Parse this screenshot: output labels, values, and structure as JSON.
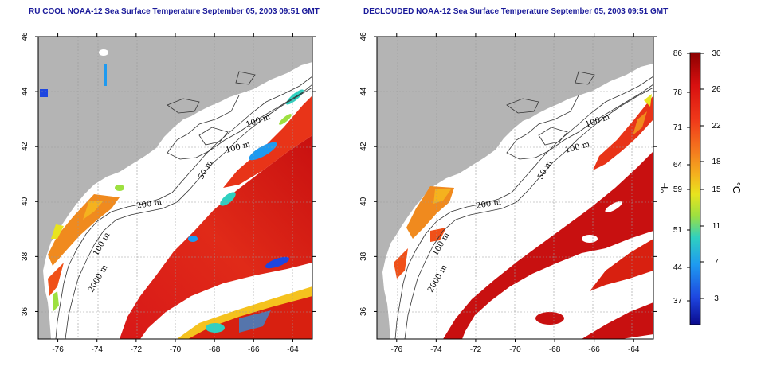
{
  "left_panel": {
    "title": "RU COOL NOAA-12 Sea Surface Temperature September 05, 2003 09:51 GMT",
    "contour_labels": [
      "100 m",
      "100 m",
      "50 m",
      "200 m",
      "100 m",
      "2000 m"
    ]
  },
  "right_panel": {
    "title": "DECLOUDED NOAA-12 Sea Surface Temperature September 05, 2003 09:51 GMT",
    "contour_labels": [
      "100 m",
      "100 m",
      "50 m",
      "200 m",
      "100 m",
      "2000 m"
    ]
  },
  "x_ticks": [
    "-76",
    "-74",
    "-72",
    "-70",
    "-68",
    "-66",
    "-64"
  ],
  "y_ticks": [
    "36",
    "38",
    "40",
    "42",
    "44",
    "46"
  ],
  "colorbar": {
    "fahrenheit_ticks": [
      "86",
      "78",
      "71",
      "64",
      "59",
      "51",
      "44",
      "37"
    ],
    "celsius_ticks": [
      "30",
      "26",
      "22",
      "18",
      "15",
      "11",
      "7",
      "3"
    ],
    "unit_f": "°F",
    "unit_c": "°C"
  },
  "colors": {
    "land": "#b4b4b4",
    "title": "#1a1a9a",
    "gradient": [
      "#8b0000",
      "#d81010",
      "#f03a1a",
      "#f5781e",
      "#f5b21e",
      "#e8e41e",
      "#9de040",
      "#2fd0c0",
      "#1e9af0",
      "#1e46e0",
      "#0a0a8c"
    ]
  }
}
